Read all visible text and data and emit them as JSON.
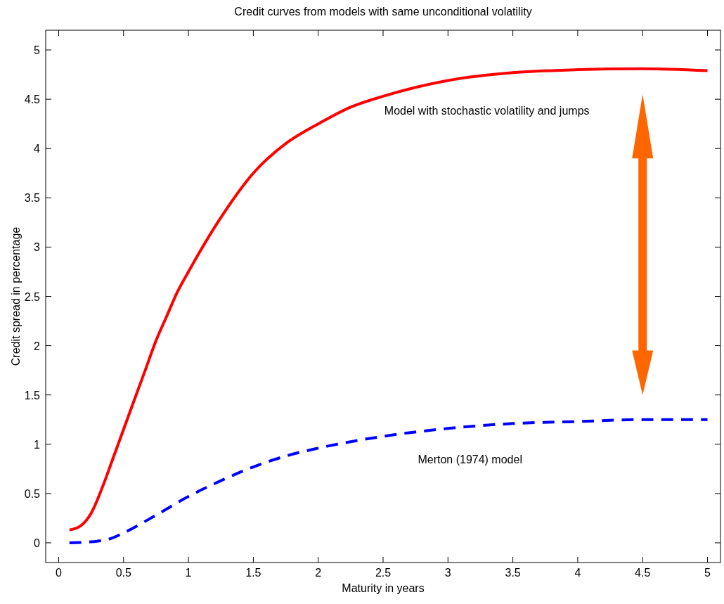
{
  "chart_data": {
    "type": "line",
    "title": "Credit curves from models with same unconditional volatility",
    "xlabel": "Maturity in years",
    "ylabel": "Credit spread in percentage",
    "xlim": [
      -0.1,
      5.1
    ],
    "ylim": [
      -0.2,
      5.2
    ],
    "xticks": [
      0,
      0.5,
      1,
      1.5,
      2,
      2.5,
      3,
      3.5,
      4,
      4.5,
      5
    ],
    "yticks": [
      0,
      0.5,
      1,
      1.5,
      2,
      2.5,
      3,
      3.5,
      4,
      4.5,
      5
    ],
    "grid": false,
    "series": [
      {
        "name": "Model with stochastic volatility and jumps",
        "color": "#ff0000",
        "line_style": "solid",
        "x": [
          0.083,
          0.167,
          0.25,
          0.333,
          0.417,
          0.5,
          0.583,
          0.667,
          0.75,
          0.833,
          0.917,
          1,
          1.25,
          1.5,
          1.75,
          2,
          2.25,
          2.5,
          2.75,
          3,
          3.5,
          4,
          4.5,
          5
        ],
        "values": [
          0.13,
          0.17,
          0.3,
          0.55,
          0.85,
          1.15,
          1.45,
          1.75,
          2.05,
          2.3,
          2.55,
          2.75,
          3.3,
          3.75,
          4.05,
          4.25,
          4.42,
          4.53,
          4.62,
          4.69,
          4.77,
          4.8,
          4.81,
          4.79
        ]
      },
      {
        "name": "Merton (1974) model",
        "color": "#0000ff",
        "line_style": "dashed",
        "x": [
          0.083,
          0.25,
          0.417,
          0.5,
          0.75,
          1,
          1.25,
          1.5,
          1.75,
          2,
          2.5,
          3,
          3.5,
          4,
          4.5,
          5
        ],
        "values": [
          0,
          0.01,
          0.05,
          0.1,
          0.28,
          0.47,
          0.63,
          0.77,
          0.88,
          0.96,
          1.08,
          1.16,
          1.21,
          1.23,
          1.25,
          1.25
        ]
      }
    ]
  }
}
